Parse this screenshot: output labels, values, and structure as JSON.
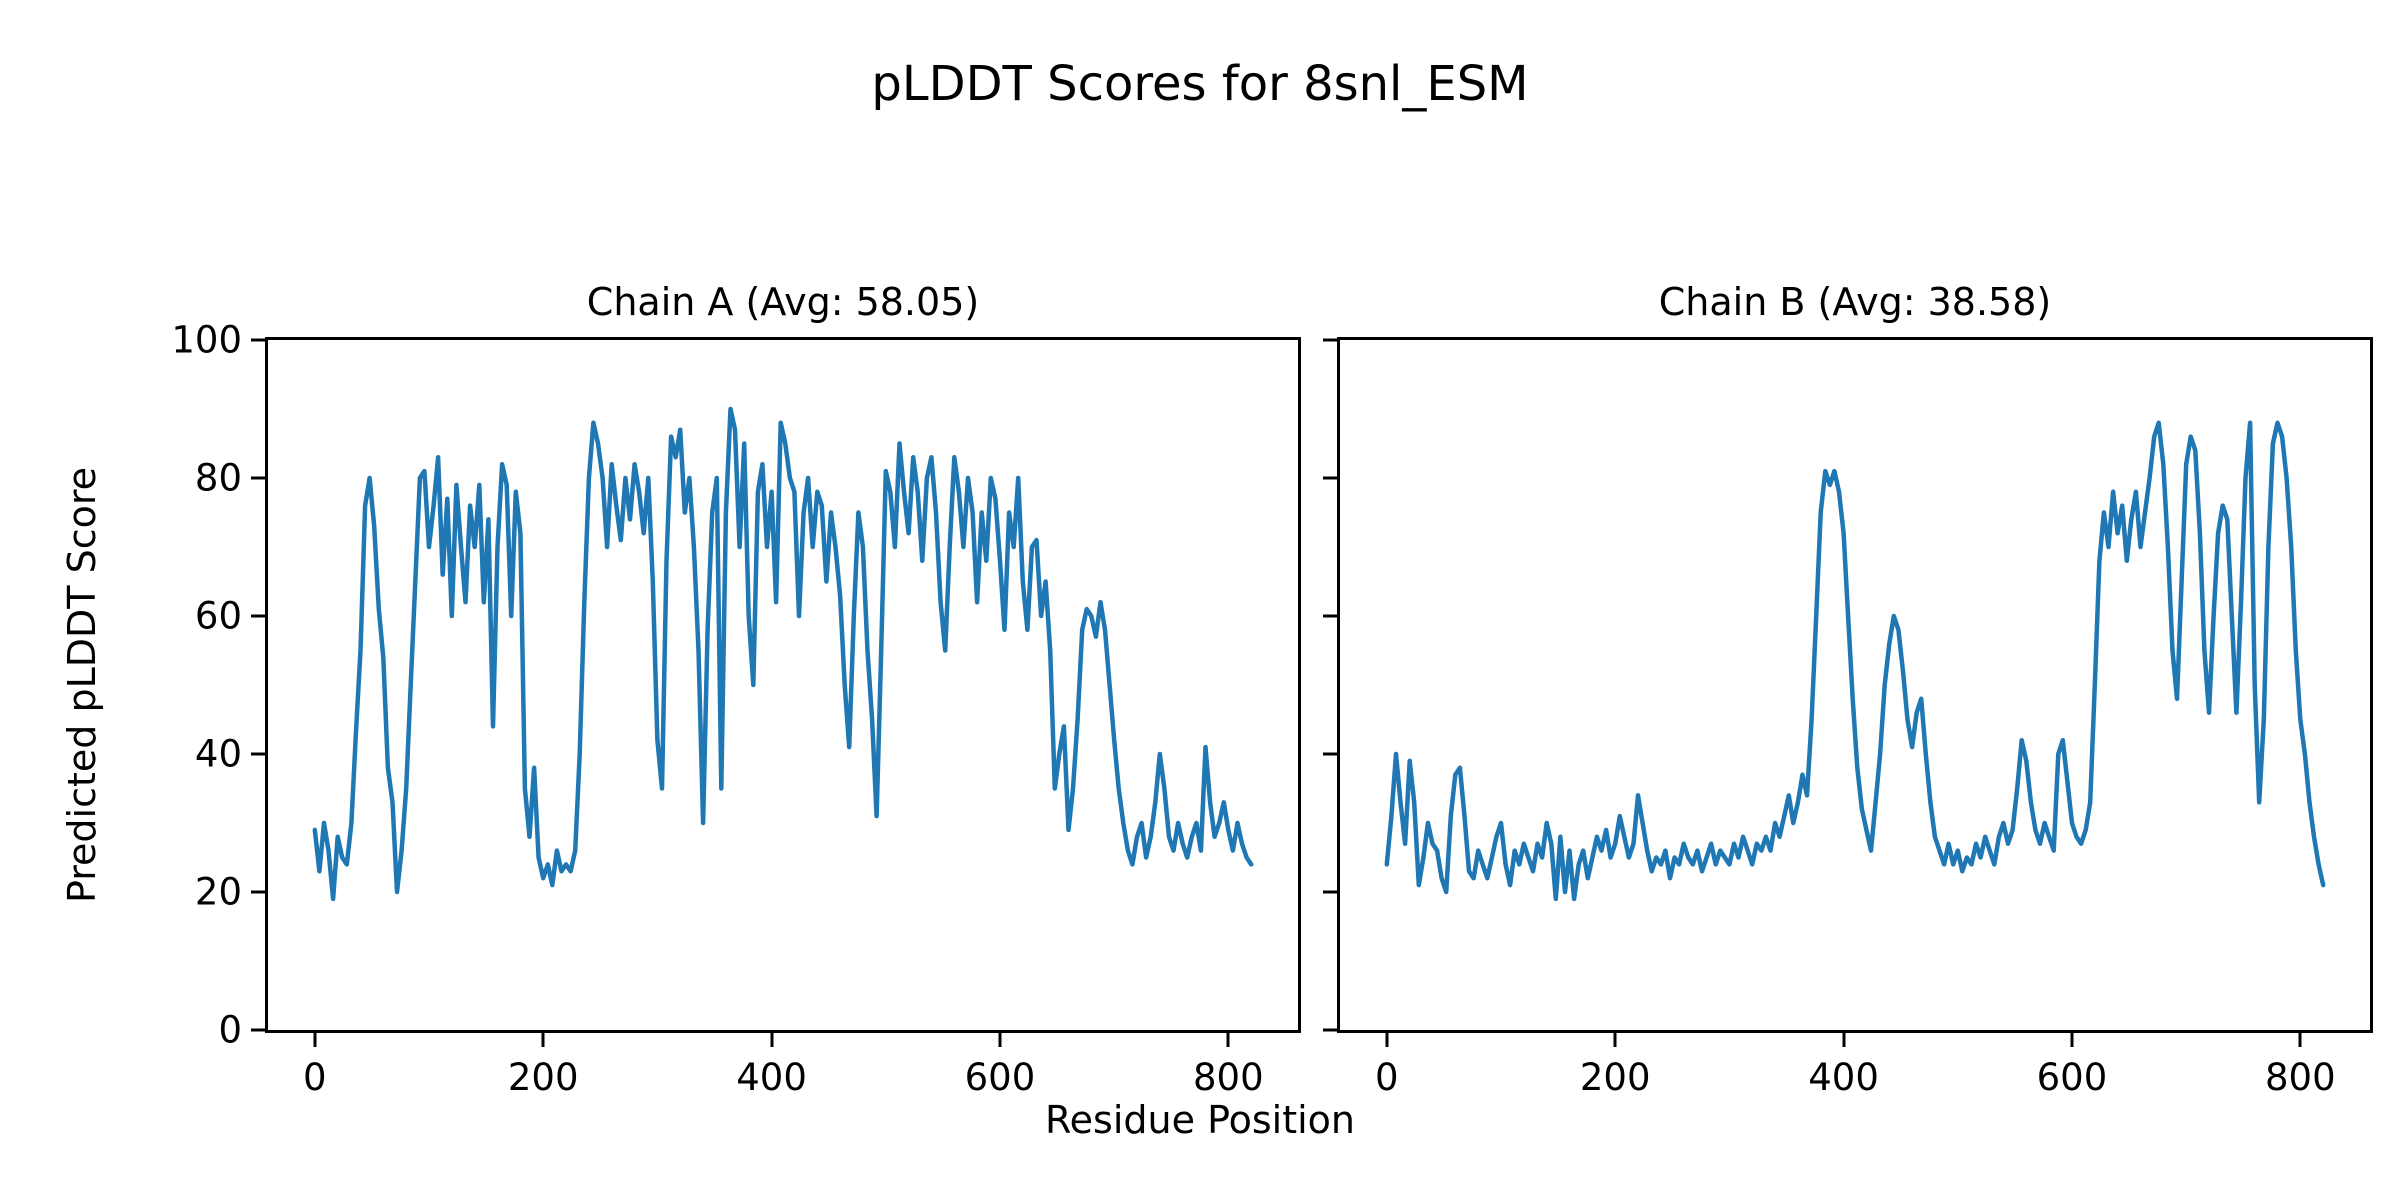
{
  "title": "pLDDT Scores for 8snl_ESM",
  "xlabel": "Residue Position",
  "ylabel": "Predicted pLDDT Score",
  "colors": {
    "line": "#1f77b4",
    "text": "#000000",
    "background": "#ffffff",
    "spine": "#000000"
  },
  "chart_data": [
    {
      "type": "line",
      "title": "Chain A (Avg: 58.05)",
      "chain": "A",
      "avg": 58.05,
      "xlabel": "Residue Position",
      "ylabel": "Predicted pLDDT Score",
      "xlim": [
        -41,
        861
      ],
      "ylim": [
        0,
        100
      ],
      "xticks": [
        0,
        200,
        400,
        600,
        800
      ],
      "yticks": [
        0,
        20,
        40,
        60,
        80,
        100
      ],
      "show_ytick_labels": true,
      "grid": false,
      "legend": "none",
      "x_start": 0,
      "x_step": 4,
      "values": [
        29,
        23,
        30,
        26,
        19,
        28,
        25,
        24,
        30,
        43,
        55,
        76,
        80,
        73,
        61,
        54,
        38,
        33,
        20,
        26,
        35,
        50,
        65,
        80,
        81,
        70,
        76,
        83,
        66,
        77,
        60,
        79,
        70,
        62,
        76,
        70,
        79,
        62,
        74,
        44,
        70,
        82,
        79,
        60,
        78,
        72,
        35,
        28,
        38,
        25,
        22,
        24,
        21,
        26,
        23,
        24,
        23,
        26,
        40,
        62,
        80,
        88,
        85,
        80,
        70,
        82,
        76,
        71,
        80,
        74,
        82,
        78,
        72,
        80,
        65,
        42,
        35,
        68,
        86,
        83,
        87,
        75,
        80,
        70,
        55,
        30,
        58,
        75,
        80,
        35,
        75,
        90,
        87,
        70,
        85,
        60,
        50,
        78,
        82,
        70,
        78,
        62,
        88,
        85,
        80,
        78,
        60,
        75,
        80,
        70,
        78,
        76,
        65,
        75,
        70,
        63,
        50,
        41,
        60,
        75,
        70,
        55,
        45,
        31,
        55,
        81,
        78,
        70,
        85,
        78,
        72,
        83,
        78,
        68,
        80,
        83,
        75,
        62,
        55,
        70,
        83,
        78,
        70,
        80,
        75,
        62,
        75,
        68,
        80,
        77,
        68,
        58,
        75,
        70,
        80,
        65,
        58,
        70,
        71,
        60,
        65,
        55,
        35,
        40,
        44,
        29,
        35,
        45,
        58,
        61,
        60,
        57,
        62,
        58,
        50,
        42,
        35,
        30,
        26,
        24,
        28,
        30,
        25,
        28,
        33,
        40,
        35,
        28,
        26,
        30,
        27,
        25,
        28,
        30,
        26,
        41,
        33,
        28,
        30,
        33,
        29,
        26,
        30,
        27,
        25,
        24
      ]
    },
    {
      "type": "line",
      "title": "Chain B (Avg: 38.58)",
      "chain": "B",
      "avg": 38.58,
      "xlabel": "Residue Position",
      "ylabel": "Predicted pLDDT Score",
      "xlim": [
        -41,
        861
      ],
      "ylim": [
        0,
        100
      ],
      "xticks": [
        0,
        200,
        400,
        600,
        800
      ],
      "yticks": [
        0,
        20,
        40,
        60,
        80,
        100
      ],
      "show_ytick_labels": false,
      "grid": false,
      "legend": "none",
      "x_start": 0,
      "x_step": 4,
      "values": [
        24,
        31,
        40,
        33,
        27,
        39,
        33,
        21,
        25,
        30,
        27,
        26,
        22,
        20,
        31,
        37,
        38,
        31,
        23,
        22,
        26,
        24,
        22,
        25,
        28,
        30,
        24,
        21,
        26,
        24,
        27,
        25,
        23,
        27,
        25,
        30,
        27,
        19,
        28,
        20,
        26,
        19,
        24,
        26,
        22,
        25,
        28,
        26,
        29,
        25,
        27,
        31,
        28,
        25,
        27,
        34,
        30,
        26,
        23,
        25,
        24,
        26,
        22,
        25,
        24,
        27,
        25,
        24,
        26,
        23,
        25,
        27,
        24,
        26,
        25,
        24,
        27,
        25,
        28,
        26,
        24,
        27,
        26,
        28,
        26,
        30,
        28,
        31,
        34,
        30,
        33,
        37,
        34,
        45,
        60,
        75,
        81,
        79,
        81,
        78,
        72,
        60,
        48,
        38,
        32,
        29,
        26,
        33,
        40,
        50,
        56,
        60,
        58,
        52,
        45,
        41,
        46,
        48,
        40,
        33,
        28,
        26,
        24,
        27,
        24,
        26,
        23,
        25,
        24,
        27,
        25,
        28,
        26,
        24,
        28,
        30,
        27,
        29,
        35,
        42,
        39,
        33,
        29,
        27,
        30,
        28,
        26,
        40,
        42,
        36,
        30,
        28,
        27,
        29,
        33,
        50,
        68,
        75,
        70,
        78,
        72,
        76,
        68,
        74,
        78,
        70,
        75,
        80,
        86,
        88,
        82,
        70,
        55,
        48,
        65,
        82,
        86,
        84,
        72,
        55,
        46,
        60,
        72,
        76,
        74,
        60,
        46,
        62,
        80,
        88,
        50,
        33,
        45,
        70,
        85,
        88,
        86,
        80,
        70,
        55,
        45,
        40,
        33,
        28,
        24,
        21
      ]
    }
  ]
}
